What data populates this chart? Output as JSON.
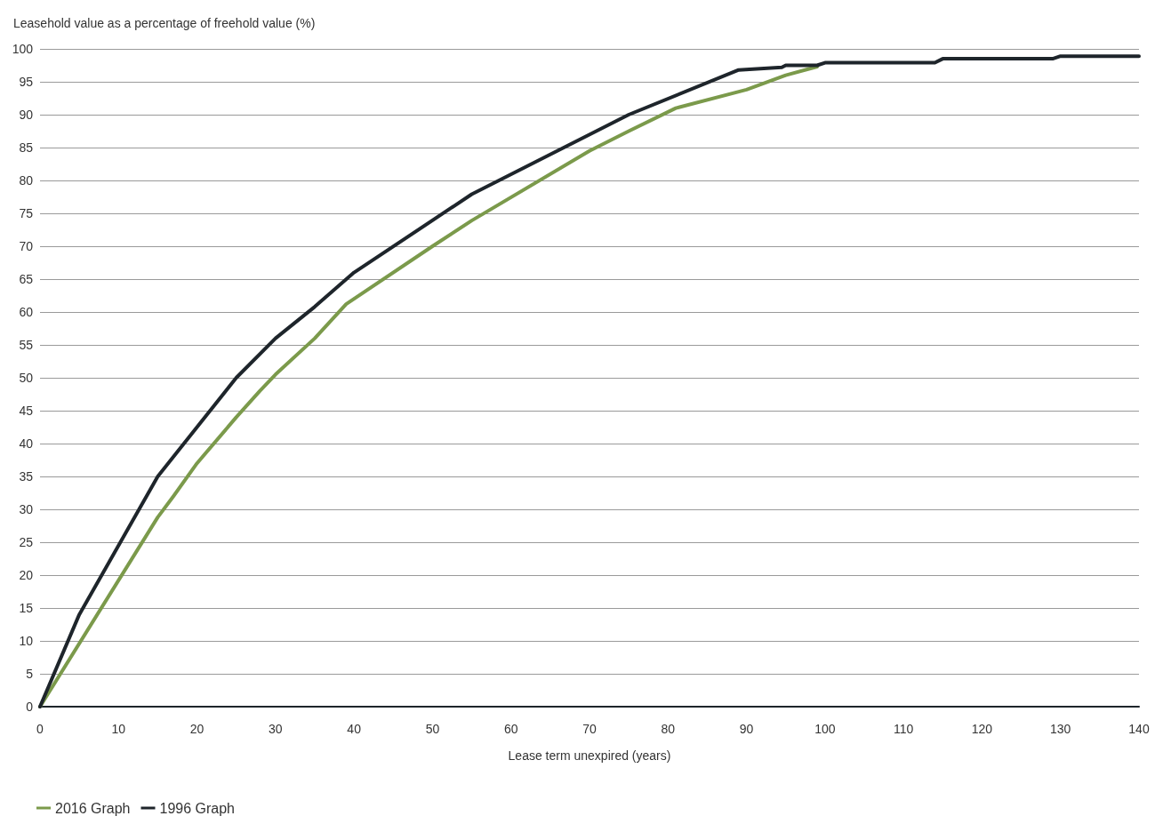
{
  "chart_data": {
    "type": "line",
    "xlabel": "Lease term unexpired (years)",
    "ylabel": "Leasehold value as a percentage of freehold value (%)",
    "xlim": [
      0,
      140
    ],
    "xticks": [
      0,
      10,
      20,
      30,
      40,
      50,
      60,
      70,
      80,
      90,
      100,
      110,
      120,
      130,
      140
    ],
    "ylim": [
      0,
      100
    ],
    "yticks": [
      0,
      5,
      10,
      15,
      20,
      25,
      30,
      35,
      40,
      45,
      50,
      55,
      60,
      65,
      70,
      75,
      80,
      85,
      90,
      95,
      100
    ],
    "grid": "y",
    "legend": "bottom left",
    "marker": "none",
    "line_style": "solid",
    "series": [
      {
        "name": "2016 Graph",
        "color": "#7b9a4b",
        "x": [
          0,
          15,
          17,
          20,
          25,
          28,
          30,
          35,
          39,
          50,
          55,
          70,
          75,
          81,
          90,
          95,
          99
        ],
        "values": [
          0,
          28.8,
          32,
          37,
          44,
          48,
          50.5,
          56,
          61.2,
          70,
          73.9,
          84.5,
          87.5,
          91,
          93.8,
          96,
          97.3
        ]
      },
      {
        "name": "1996 Graph",
        "color": "#1e252b",
        "x": [
          0,
          5,
          15,
          25,
          30,
          35,
          40,
          55,
          75,
          89,
          94.5,
          95,
          99,
          100,
          114,
          115,
          129,
          130,
          140
        ],
        "values": [
          0,
          14,
          35,
          50,
          56,
          60.8,
          66,
          77.9,
          90,
          96.8,
          97.2,
          97.5,
          97.5,
          97.9,
          97.9,
          98.5,
          98.5,
          98.9,
          98.9
        ]
      }
    ]
  }
}
